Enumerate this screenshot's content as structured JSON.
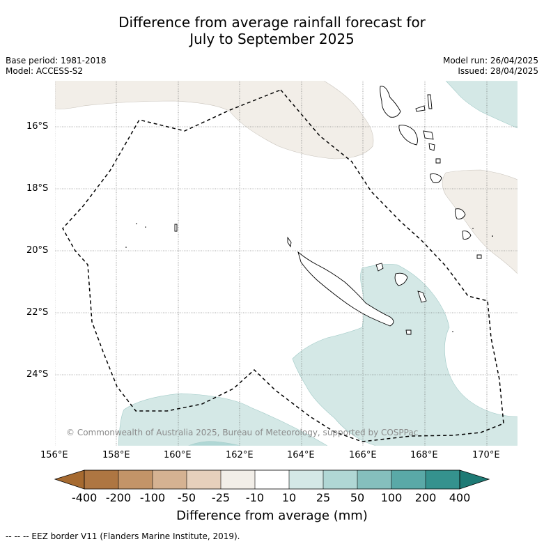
{
  "title": {
    "line1": "Difference from average rainfall forecast for",
    "line2": "July to September 2025"
  },
  "meta": {
    "base_period": "Base period: 1981-2018",
    "model": "Model: ACCESS-S2",
    "model_run": "Model run: 26/04/2025",
    "issued": "Issued: 28/04/2025"
  },
  "map": {
    "lat_labels": [
      "16°S",
      "18°S",
      "20°S",
      "22°S",
      "24°S"
    ],
    "lon_labels": [
      "156°E",
      "158°E",
      "160°E",
      "162°E",
      "164°E",
      "166°E",
      "168°E",
      "170°E"
    ],
    "copyright": "© Commonwealth of Australia 2025, Bureau of Meteorology, supported by COSPPac",
    "region_colors": {
      "light_wet": "#d4e8e6",
      "medium_wet": "#b0d7d5",
      "light_dry": "#f2eee8"
    }
  },
  "colorbar": {
    "tick_labels": [
      "-400",
      "-200",
      "-100",
      "-50",
      "-25",
      "-10",
      "10",
      "25",
      "50",
      "100",
      "200",
      "400"
    ],
    "colors": [
      "#a66a30",
      "#ae7642",
      "#c39468",
      "#d5b292",
      "#e6d0bc",
      "#f2eee8",
      "#ffffff",
      "#d4e8e6",
      "#b0d7d5",
      "#85bfbd",
      "#5aa9a7",
      "#35928e",
      "#1e7a75"
    ],
    "label": "Difference from average (mm)"
  },
  "footnote": "-- -- -- EEZ border V11 (Flanders Marine Institute, 2019)."
}
